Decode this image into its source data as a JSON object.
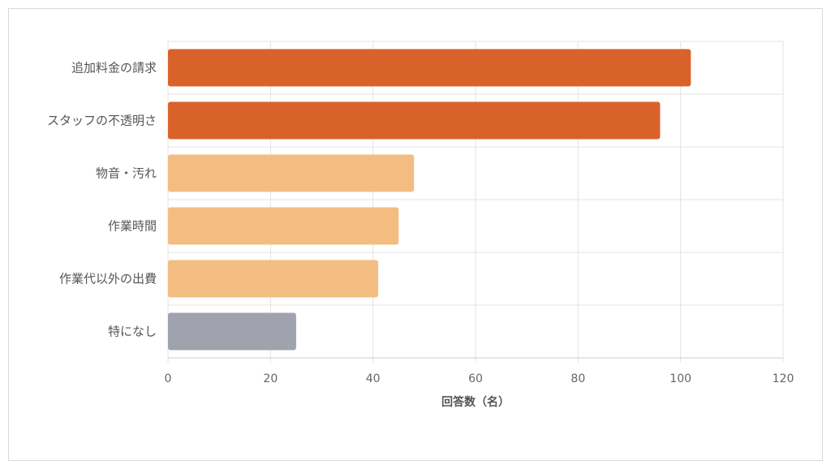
{
  "chart_data": {
    "type": "bar",
    "orientation": "horizontal",
    "title": "",
    "xlabel": "回答数（名）",
    "ylabel": "",
    "xlim": [
      0,
      120
    ],
    "x_ticks": [
      0,
      20,
      40,
      60,
      80,
      100,
      120
    ],
    "grid": true,
    "legend": "none",
    "categories": [
      "追加料金の請求",
      "スタッフの不透明さ",
      "物音・汚れ",
      "作業時間",
      "作業代以外の出費",
      "特になし"
    ],
    "values": [
      102,
      96,
      48,
      45,
      41,
      25
    ],
    "bar_colors": [
      "#d9622b",
      "#d9622b",
      "#f3bd82",
      "#f3bd82",
      "#f3bd82",
      "#a0a3ad"
    ]
  },
  "colors": {
    "grid": "#e3e3e3",
    "axis": "#cccccc"
  }
}
